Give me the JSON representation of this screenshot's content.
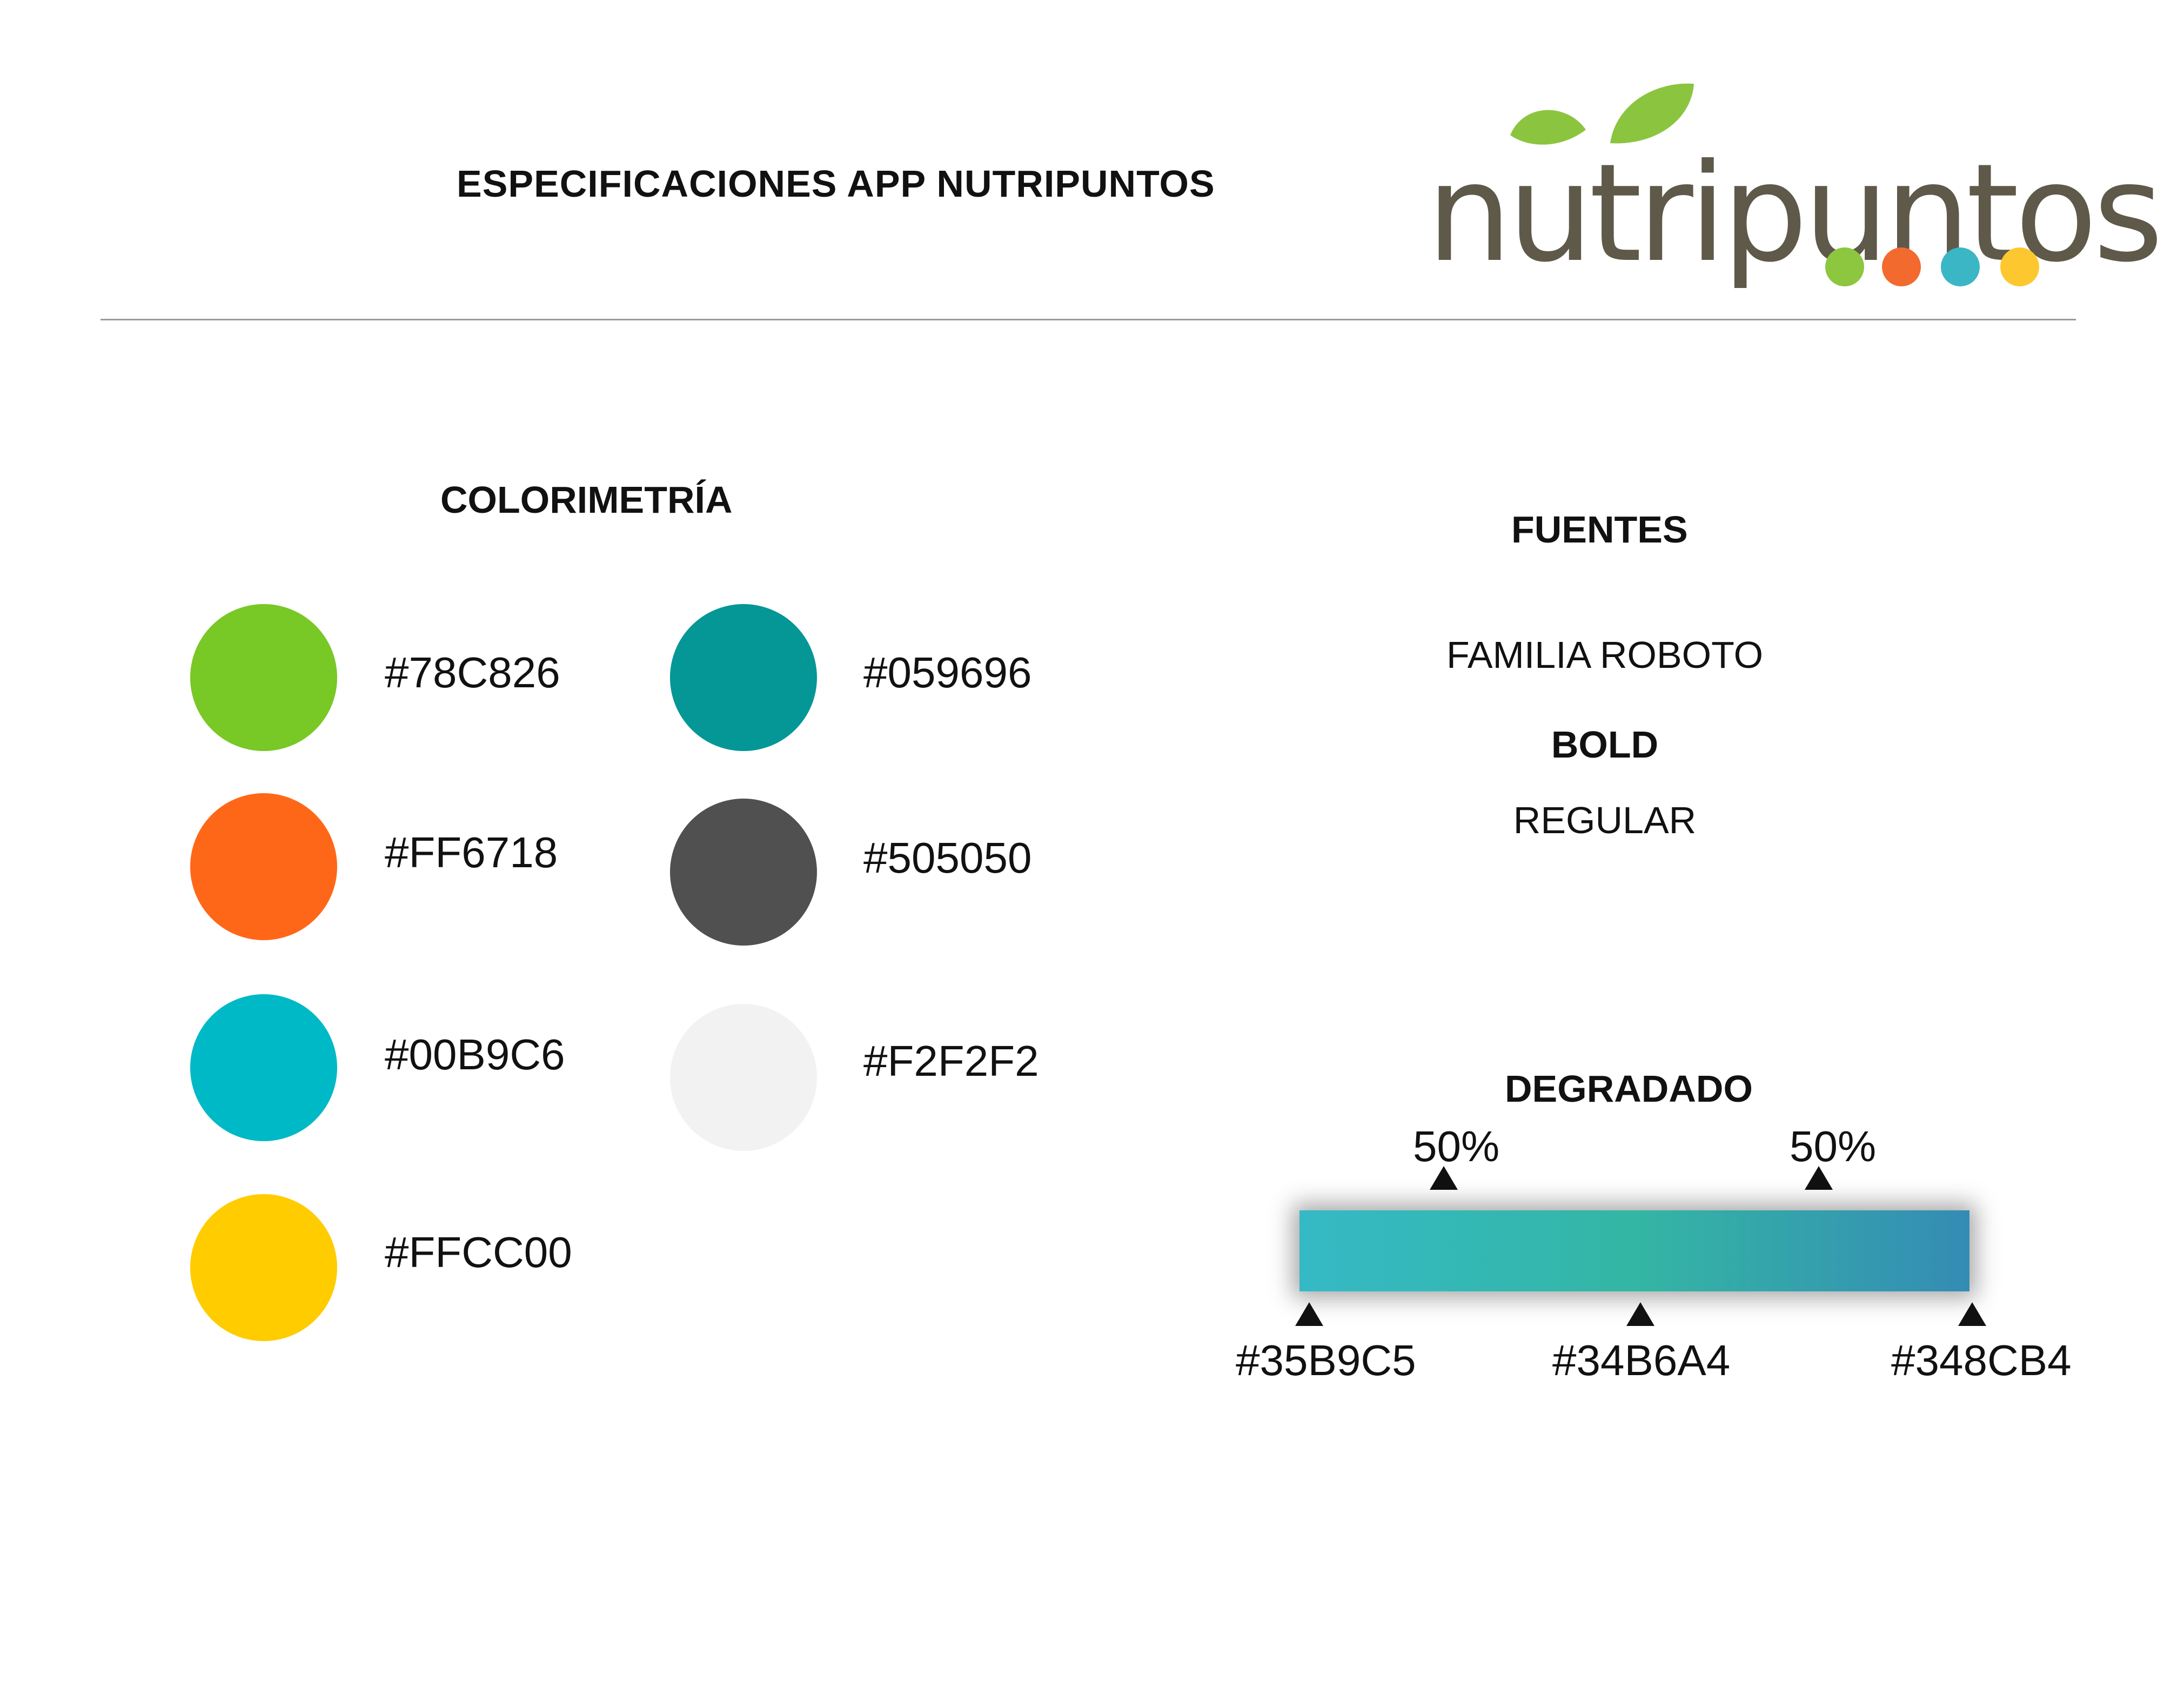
{
  "header": {
    "title": "ESPECIFICACIONES APP NUTRIPUNTOS",
    "logo": {
      "wordmark": "nutripuntos",
      "leaf_color": "#8bc53f",
      "wordmark_color": "#5e5949",
      "dot_colors": [
        "#8dc63f",
        "#f26a2e",
        "#3bb6c4",
        "#fdc82f"
      ]
    }
  },
  "colorimetria": {
    "heading": "COLORIMETRÍA",
    "colors": [
      {
        "hex": "#78C826",
        "label": "#78C826"
      },
      {
        "hex": "#FF6718",
        "label": "#FF6718"
      },
      {
        "hex": "#00B9C6",
        "label": "#00B9C6"
      },
      {
        "hex": "#FFCC00",
        "label": "#FFCC00"
      },
      {
        "hex": "#059696",
        "label": "#059696"
      },
      {
        "hex": "#505050",
        "label": "#505050"
      },
      {
        "hex": "#F2F2F2",
        "label": "#F2F2F2"
      }
    ]
  },
  "fuentes": {
    "heading": "FUENTES",
    "family": "FAMILIA ROBOTO",
    "bold": "BOLD",
    "regular": "REGULAR"
  },
  "degradado": {
    "heading": "DEGRADADO",
    "midpoint_top_left": "50%",
    "midpoint_top_right": "50%",
    "stops": [
      {
        "hex": "#35B9C5",
        "label": "#35B9C5"
      },
      {
        "hex": "#34B6A4",
        "label": "#34B6A4"
      },
      {
        "hex": "#348CB4",
        "label": "#348CB4"
      }
    ]
  }
}
